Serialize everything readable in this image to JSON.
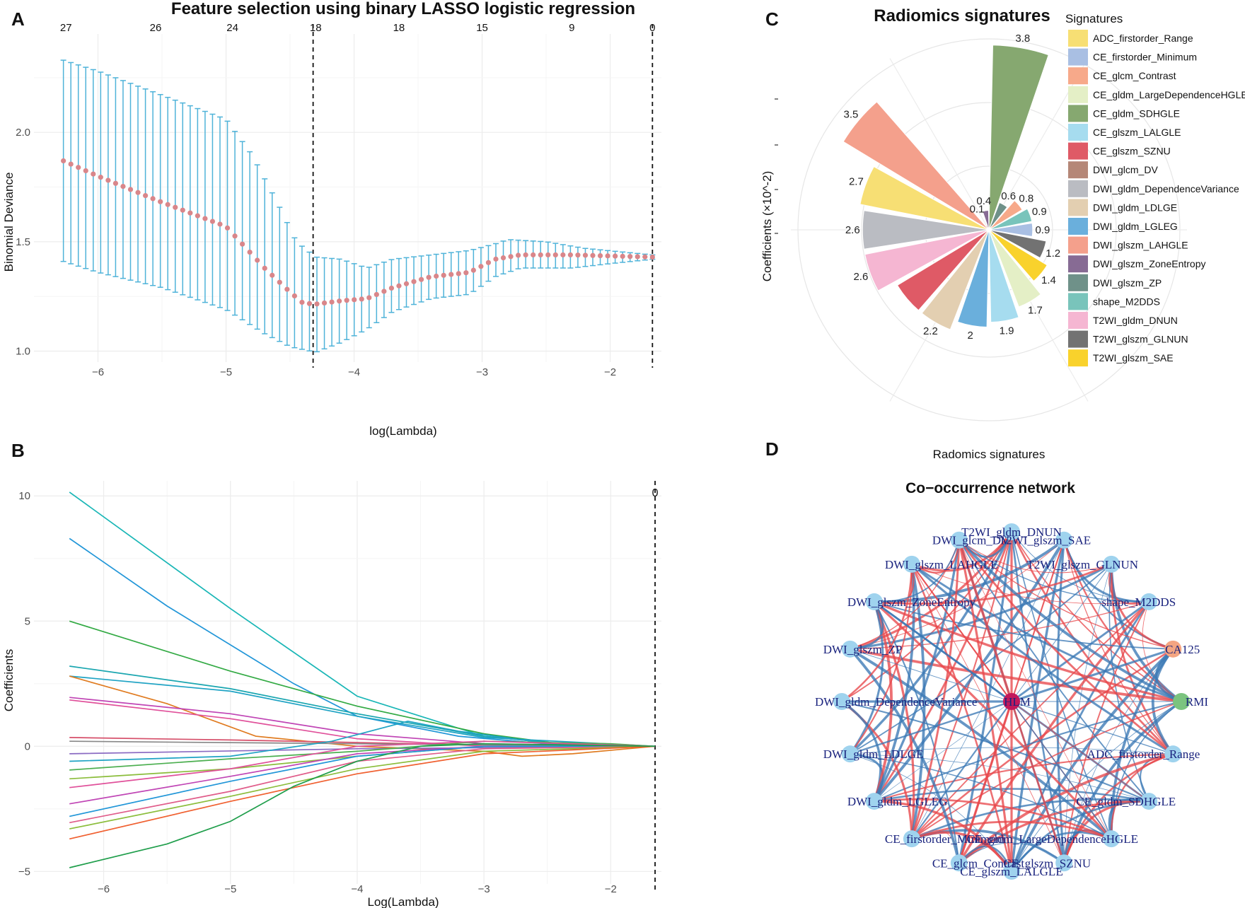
{
  "panels": {
    "a": "A",
    "b": "B",
    "c": "C",
    "d": "D"
  },
  "colors": {
    "errorbar": "#4fb3d9",
    "point": "#d9868a",
    "grid": "#ececec",
    "positive_edge": "#e8484c",
    "negative_edge": "#3b78b5",
    "node": "#9fd3ee"
  },
  "chart_data": [
    {
      "id": "A",
      "type": "line",
      "title": "Feature selection using binary LASSO logistic regression",
      "xlabel": "log(Lambda)",
      "ylabel": "Binomial Deviance",
      "xlim": [
        -6.5,
        -1.6
      ],
      "ylim": [
        0.95,
        2.45
      ],
      "x_ticks": [
        -6,
        -5,
        -4,
        -3,
        -2
      ],
      "y_ticks": [
        1.0,
        1.5,
        2.0
      ],
      "top_axis": {
        "positions": [
          -6.25,
          -5.55,
          -4.95,
          -4.3,
          -3.65,
          -3.0,
          -2.3,
          -1.67
        ],
        "labels": [
          "27",
          "26",
          "24",
          "18",
          "18",
          "15",
          "9",
          "0"
        ]
      },
      "vlines": [
        -4.32,
        -1.67
      ],
      "curve_points": [
        [
          -6.27,
          1.87
        ],
        [
          -6.0,
          1.8
        ],
        [
          -5.5,
          1.68
        ],
        [
          -5.0,
          1.57
        ],
        [
          -4.7,
          1.38
        ],
        [
          -4.5,
          1.27
        ],
        [
          -4.4,
          1.22
        ],
        [
          -4.3,
          1.215
        ],
        [
          -4.1,
          1.23
        ],
        [
          -3.9,
          1.24
        ],
        [
          -3.7,
          1.29
        ],
        [
          -3.4,
          1.34
        ],
        [
          -3.1,
          1.36
        ],
        [
          -2.9,
          1.42
        ],
        [
          -2.7,
          1.44
        ],
        [
          -2.3,
          1.44
        ],
        [
          -2.0,
          1.435
        ],
        [
          -1.67,
          1.43
        ]
      ],
      "upper_points": [
        [
          -6.27,
          2.33
        ],
        [
          -6.0,
          2.28
        ],
        [
          -5.5,
          2.17
        ],
        [
          -5.0,
          2.06
        ],
        [
          -4.8,
          1.9
        ],
        [
          -4.6,
          1.68
        ],
        [
          -4.45,
          1.5
        ],
        [
          -4.3,
          1.43
        ],
        [
          -4.1,
          1.42
        ],
        [
          -3.9,
          1.38
        ],
        [
          -3.7,
          1.42
        ],
        [
          -3.4,
          1.44
        ],
        [
          -3.1,
          1.46
        ],
        [
          -2.9,
          1.49
        ],
        [
          -2.8,
          1.51
        ],
        [
          -2.5,
          1.5
        ],
        [
          -2.2,
          1.47
        ],
        [
          -1.67,
          1.44
        ]
      ],
      "lower_points": [
        [
          -6.27,
          1.41
        ],
        [
          -6.0,
          1.36
        ],
        [
          -5.5,
          1.29
        ],
        [
          -5.0,
          1.19
        ],
        [
          -4.7,
          1.08
        ],
        [
          -4.5,
          1.02
        ],
        [
          -4.3,
          0.995
        ],
        [
          -4.1,
          1.04
        ],
        [
          -3.9,
          1.1
        ],
        [
          -3.7,
          1.18
        ],
        [
          -3.4,
          1.24
        ],
        [
          -3.1,
          1.26
        ],
        [
          -2.9,
          1.34
        ],
        [
          -2.7,
          1.38
        ],
        [
          -2.3,
          1.38
        ],
        [
          -2.0,
          1.4
        ],
        [
          -1.67,
          1.42
        ]
      ]
    },
    {
      "id": "B",
      "type": "line",
      "xlabel": "Log(Lambda)",
      "ylabel": "Coefficients",
      "xlim": [
        -6.55,
        -1.6
      ],
      "ylim": [
        -5.5,
        10.6
      ],
      "x_ticks": [
        -6,
        -5,
        -4,
        -3,
        -2
      ],
      "y_ticks": [
        -5,
        0,
        5,
        10
      ],
      "top_label": "0",
      "vline": -1.65,
      "series": [
        {
          "color": "#19b6b6",
          "points": [
            [
              -6.27,
              10.15
            ],
            [
              -5.0,
              5.5
            ],
            [
              -4.0,
              2.0
            ],
            [
              -3.0,
              0.4
            ],
            [
              -2.4,
              0.1
            ],
            [
              -1.65,
              0.0
            ]
          ]
        },
        {
          "color": "#2196d8",
          "points": [
            [
              -6.27,
              8.3
            ],
            [
              -5.5,
              5.6
            ],
            [
              -4.5,
              2.5
            ],
            [
              -4.0,
              1.2
            ],
            [
              -3.2,
              0.4
            ],
            [
              -2.4,
              0.05
            ],
            [
              -1.65,
              0.0
            ]
          ]
        },
        {
          "color": "#33aa44",
          "points": [
            [
              -6.27,
              5.0
            ],
            [
              -5.0,
              3.0
            ],
            [
              -4.0,
              1.6
            ],
            [
              -3.0,
              0.5
            ],
            [
              -2.4,
              0.1
            ],
            [
              -1.65,
              0.0
            ]
          ]
        },
        {
          "color": "#1aa6b0",
          "points": [
            [
              -6.27,
              3.2
            ],
            [
              -5.0,
              2.3
            ],
            [
              -4.0,
              1.3
            ],
            [
              -3.0,
              0.4
            ],
            [
              -2.4,
              0.1
            ],
            [
              -1.65,
              0.0
            ]
          ]
        },
        {
          "color": "#1fa3c4",
          "points": [
            [
              -6.27,
              2.8
            ],
            [
              -5.0,
              2.2
            ],
            [
              -4.0,
              1.2
            ],
            [
              -3.0,
              0.35
            ],
            [
              -1.65,
              0.0
            ]
          ]
        },
        {
          "color": "#e07b20",
          "points": [
            [
              -6.27,
              2.8
            ],
            [
              -5.5,
              1.7
            ],
            [
              -4.8,
              0.4
            ],
            [
              -4.0,
              0.0
            ],
            [
              -3.0,
              -0.2
            ],
            [
              -2.7,
              -0.4
            ],
            [
              -2.3,
              -0.3
            ],
            [
              -1.65,
              0.0
            ]
          ]
        },
        {
          "color": "#c045b5",
          "points": [
            [
              -6.27,
              1.95
            ],
            [
              -5.0,
              1.3
            ],
            [
              -4.0,
              0.5
            ],
            [
              -3.0,
              0.1
            ],
            [
              -1.65,
              0.0
            ]
          ]
        },
        {
          "color": "#e0509a",
          "points": [
            [
              -6.27,
              1.85
            ],
            [
              -5.0,
              1.1
            ],
            [
              -4.0,
              0.3
            ],
            [
              -3.0,
              0.0
            ],
            [
              -1.65,
              0.0
            ]
          ]
        },
        {
          "color": "#d64f6a",
          "points": [
            [
              -6.27,
              0.35
            ],
            [
              -5.0,
              0.25
            ],
            [
              -4.0,
              0.15
            ],
            [
              -3.0,
              0.05
            ],
            [
              -1.65,
              0.0
            ]
          ]
        },
        {
          "color": "#888888",
          "points": [
            [
              -6.27,
              0.2
            ],
            [
              -4.0,
              0.1
            ],
            [
              -1.65,
              0.0
            ]
          ]
        },
        {
          "color": "#8a6ac2",
          "points": [
            [
              -6.27,
              -0.3
            ],
            [
              -4.0,
              -0.1
            ],
            [
              -1.65,
              0.0
            ]
          ]
        },
        {
          "color": "#1fa3c4",
          "points": [
            [
              -6.27,
              -0.6
            ],
            [
              -5.0,
              -0.4
            ],
            [
              -4.2,
              0.2
            ],
            [
              -3.6,
              1.0
            ],
            [
              -3.2,
              0.6
            ],
            [
              -2.4,
              0.05
            ],
            [
              -1.65,
              0.0
            ]
          ]
        },
        {
          "color": "#4caf50",
          "points": [
            [
              -6.27,
              -0.95
            ],
            [
              -5.0,
              -0.5
            ],
            [
              -4.0,
              -0.2
            ],
            [
              -3.0,
              0.2
            ],
            [
              -2.0,
              0.1
            ],
            [
              -1.65,
              0.0
            ]
          ]
        },
        {
          "color": "#8bbd3b",
          "points": [
            [
              -6.27,
              -1.3
            ],
            [
              -5.0,
              -0.9
            ],
            [
              -4.0,
              -0.4
            ],
            [
              -3.0,
              0.0
            ],
            [
              -1.65,
              0.0
            ]
          ]
        },
        {
          "color": "#e0509a",
          "points": [
            [
              -6.27,
              -1.65
            ],
            [
              -5.0,
              -0.9
            ],
            [
              -4.0,
              0.0
            ],
            [
              -3.0,
              0.2
            ],
            [
              -1.65,
              0.0
            ]
          ]
        },
        {
          "color": "#c045b5",
          "points": [
            [
              -6.27,
              -2.3
            ],
            [
              -5.0,
              -1.2
            ],
            [
              -4.0,
              -0.3
            ],
            [
              -3.0,
              0.0
            ],
            [
              -1.65,
              0.0
            ]
          ]
        },
        {
          "color": "#2196d8",
          "points": [
            [
              -6.27,
              -2.8
            ],
            [
              -5.0,
              -1.4
            ],
            [
              -4.0,
              -0.4
            ],
            [
              -3.0,
              0.0
            ],
            [
              -1.65,
              0.0
            ]
          ]
        },
        {
          "color": "#e05c8a",
          "points": [
            [
              -6.27,
              -3.05
            ],
            [
              -5.0,
              -1.8
            ],
            [
              -4.0,
              -0.6
            ],
            [
              -3.0,
              -0.1
            ],
            [
              -1.65,
              0.0
            ]
          ]
        },
        {
          "color": "#8bbd3b",
          "points": [
            [
              -6.27,
              -3.3
            ],
            [
              -5.0,
              -2.0
            ],
            [
              -4.0,
              -0.9
            ],
            [
              -3.0,
              -0.2
            ],
            [
              -1.65,
              0.0
            ]
          ]
        },
        {
          "color": "#f06030",
          "points": [
            [
              -6.27,
              -3.7
            ],
            [
              -5.0,
              -2.2
            ],
            [
              -4.0,
              -1.1
            ],
            [
              -3.0,
              -0.3
            ],
            [
              -1.65,
              0.0
            ]
          ]
        },
        {
          "color": "#1f9e4b",
          "points": [
            [
              -6.27,
              -4.85
            ],
            [
              -5.5,
              -3.9
            ],
            [
              -5.0,
              -3.0
            ],
            [
              -4.5,
              -1.6
            ],
            [
              -4.0,
              -0.6
            ],
            [
              -3.5,
              0.0
            ],
            [
              -3.0,
              0.1
            ],
            [
              -1.65,
              0.0
            ]
          ]
        }
      ]
    },
    {
      "id": "C",
      "type": "bar",
      "polar": true,
      "title": "Radiomics signatures",
      "xlabel": "Radomics signatures",
      "ylabel": "Coefficients (×10^-2)",
      "legend_title": "Signatures",
      "legend_position": "right",
      "categories": [
        "CE_gldm_SDHGLE",
        "DWI_glszm_ZP",
        "CE_glcm_Contrast",
        "shape_M2DDS",
        "CE_firstorder_Minimum",
        "T2WI_glszm_GLNUN",
        "T2WI_glszm_SAE",
        "CE_gldm_LargeDependenceHGLE",
        "CE_glszm_LALGLE",
        "DWI_gldm_LGLEG",
        "DWI_gldm_LDLGE",
        "CE_glszm_SZNU",
        "T2WI_gldm_DNUN",
        "DWI_gldm_DependenceVariance",
        "ADC_firstorder_Range",
        "DWI_glszm_LAHGLE",
        "DWI_glcm_DV",
        "DWI_glszm_ZoneEntropy"
      ],
      "values": [
        3.8,
        0.6,
        0.8,
        0.9,
        0.9,
        1.2,
        1.4,
        1.7,
        1.9,
        2.0,
        2.2,
        2.2,
        2.6,
        2.6,
        2.7,
        3.5,
        0.1,
        0.4
      ],
      "data_labels": [
        "3.8",
        "0.6",
        "0.8",
        "0.9",
        "0.9",
        "1.2",
        "1.4",
        "1.7",
        "1.9",
        "2",
        "2.2",
        "",
        "2.6",
        "2.6",
        "2.7",
        "3.5",
        "0.1",
        "0.4"
      ],
      "legend": [
        {
          "label": "ADC_firstorder_Range",
          "color": "#f7df74"
        },
        {
          "label": "CE_firstorder_Minimum",
          "color": "#a9bfe3"
        },
        {
          "label": "CE_glcm_Contrast",
          "color": "#f7a98a"
        },
        {
          "label": "CE_gldm_LargeDependenceHGLE",
          "color": "#e4efc6"
        },
        {
          "label": "CE_gldm_SDHGLE",
          "color": "#86a870"
        },
        {
          "label": "CE_glszm_LALGLE",
          "color": "#a6dcef"
        },
        {
          "label": "CE_glszm_SZNU",
          "color": "#df5a66"
        },
        {
          "label": "DWI_glcm_DV",
          "color": "#b58777"
        },
        {
          "label": "DWI_gldm_DependenceVariance",
          "color": "#babcc2"
        },
        {
          "label": "DWI_gldm_LDLGE",
          "color": "#e3cfb1"
        },
        {
          "label": "DWI_gldm_LGLEG",
          "color": "#6aafdc"
        },
        {
          "label": "DWI_glszm_LAHGLE",
          "color": "#f4a08c"
        },
        {
          "label": "DWI_glszm_ZoneEntropy",
          "color": "#876b94"
        },
        {
          "label": "DWI_glszm_ZP",
          "color": "#6f9189"
        },
        {
          "label": "shape_M2DDS",
          "color": "#79c4bb"
        },
        {
          "label": "T2WI_gldm_DNUN",
          "color": "#f5b6d2"
        },
        {
          "label": "T2WI_glszm_GLNUN",
          "color": "#727272"
        },
        {
          "label": "T2WI_glszm_SAE",
          "color": "#f9d22c"
        }
      ]
    },
    {
      "id": "D",
      "type": "network",
      "title": "Co−occurrence network",
      "nodes": [
        {
          "label": "T2WI_gldm_DNUN",
          "color": "#9fd3ee"
        },
        {
          "label": "T2WI_glszm_SAE",
          "color": "#9fd3ee"
        },
        {
          "label": "T2WI_glszm_GLNUN",
          "color": "#9fd3ee"
        },
        {
          "label": "shape_M2DDS",
          "color": "#9fd3ee"
        },
        {
          "label": "CA125",
          "color": "#f4a582"
        },
        {
          "label": "RMI",
          "color": "#7bc47f"
        },
        {
          "label": "ADC_firstorder_Range",
          "color": "#9fd3ee"
        },
        {
          "label": "CE_gldm_SDHGLE",
          "color": "#9fd3ee"
        },
        {
          "label": "CE_gldm_LargeDependenceHGLE",
          "color": "#9fd3ee"
        },
        {
          "label": "CE_glszm_SZNU",
          "color": "#9fd3ee"
        },
        {
          "label": "CE_glszm_LALGLE",
          "color": "#9fd3ee"
        },
        {
          "label": "CE_glcm_Contrast",
          "color": "#9fd3ee"
        },
        {
          "label": "CE_firstorder_Minimum",
          "color": "#9fd3ee"
        },
        {
          "label": "DWI_gldm_LGLEG",
          "color": "#9fd3ee"
        },
        {
          "label": "DWI_gldm_LDLGE",
          "color": "#9fd3ee"
        },
        {
          "label": "DWI_gldm_DependenceVariance",
          "color": "#9fd3ee"
        },
        {
          "label": "DWI_glszm_ZP",
          "color": "#9fd3ee"
        },
        {
          "label": "DWI_glszm_ZoneEntropy",
          "color": "#9fd3ee"
        },
        {
          "label": "DWI_glszm_LAHGLE",
          "color": "#9fd3ee"
        },
        {
          "label": "DWI_glcm_DV",
          "color": "#9fd3ee"
        },
        {
          "label": "HLM",
          "color": "#c2185b"
        }
      ]
    }
  ]
}
